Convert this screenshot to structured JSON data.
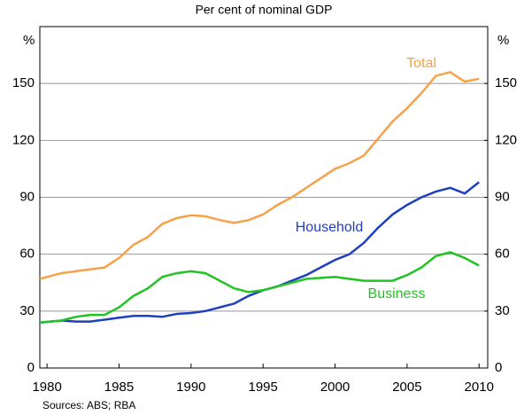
{
  "chart_data": {
    "type": "line",
    "subtitle": "Per cent of nominal GDP",
    "y_unit_left": "%",
    "y_unit_right": "%",
    "source": "Sources: ABS; RBA",
    "x": [
      1979.5,
      1981,
      1982,
      1983,
      1984,
      1985,
      1986,
      1987,
      1988,
      1989,
      1990,
      1991,
      1992,
      1993,
      1994,
      1995,
      1996,
      1997,
      1998,
      1999,
      2000,
      2001,
      2002,
      2003,
      2004,
      2005,
      2006,
      2007,
      2008,
      2009,
      2010
    ],
    "series": [
      {
        "name": "Total",
        "color": "#f7a14a",
        "values": [
          47,
          50,
          51,
          52,
          53,
          58,
          65,
          69,
          76,
          79,
          80.5,
          80,
          78,
          76.5,
          78,
          81,
          86,
          90,
          95,
          100,
          105,
          108,
          112,
          121,
          130,
          137,
          145,
          154,
          156,
          151,
          152.5
        ]
      },
      {
        "name": "Household",
        "color": "#1f3fbf",
        "values": [
          24,
          25,
          24.5,
          24.5,
          25.5,
          26.5,
          27.5,
          27.5,
          27,
          28.5,
          29,
          30,
          32,
          34,
          38,
          41,
          43,
          46,
          49,
          53,
          57,
          60,
          66,
          74,
          81,
          86,
          90,
          93,
          95,
          92,
          98
        ]
      },
      {
        "name": "Business",
        "color": "#22c322",
        "values": [
          24,
          25,
          27,
          28,
          28,
          32,
          38,
          42,
          48,
          50,
          51,
          50,
          46,
          42,
          40,
          41,
          43,
          45,
          47,
          47.5,
          48,
          47,
          46,
          46,
          46,
          49,
          53,
          59,
          61,
          58,
          54
        ]
      }
    ],
    "xlim": [
      1979.5,
      2010.6
    ],
    "xticks": [
      1980,
      1985,
      1990,
      1995,
      2000,
      2005,
      2010
    ],
    "ylim": [
      0,
      180
    ],
    "yticks": [
      0,
      30,
      60,
      90,
      120,
      150
    ],
    "y2lim": [
      0,
      180
    ],
    "y2ticks": [
      0,
      30,
      60,
      90,
      120,
      150
    ],
    "grid": true
  }
}
